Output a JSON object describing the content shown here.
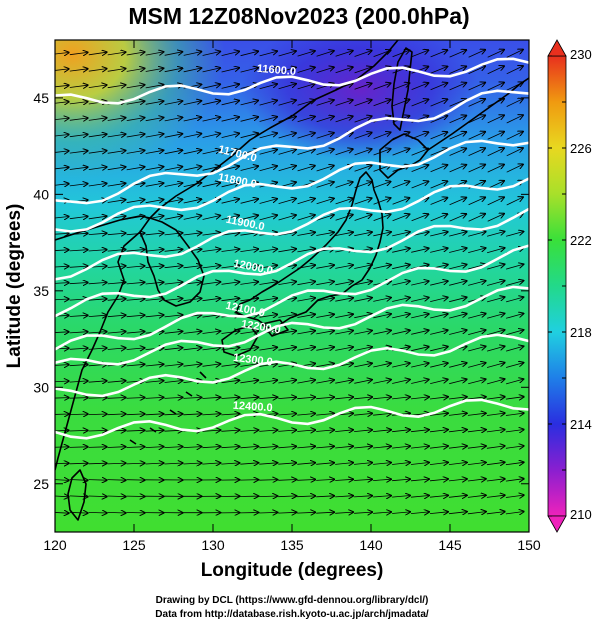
{
  "title": "MSM 12Z08Nov2023 (200.0hPa)",
  "x_axis": {
    "label": "Longitude (degrees)",
    "min": 120,
    "max": 150,
    "ticks": [
      "120",
      "125",
      "130",
      "135",
      "140",
      "145",
      "150"
    ]
  },
  "y_axis": {
    "label": "Latitude  (degrees)",
    "min": 22.5,
    "max": 48,
    "ticks": [
      "25",
      "30",
      "35",
      "40",
      "45"
    ]
  },
  "colorbar": {
    "min": 210,
    "max": 230,
    "ticks": [
      "210",
      "214",
      "218",
      "222",
      "226",
      "230"
    ],
    "colors": [
      "#ee22bb",
      "#8a1fd0",
      "#2a2ee0",
      "#1f7fe8",
      "#20d0e0",
      "#22d98a",
      "#39e03a",
      "#a8e02a",
      "#e8d820",
      "#f09a10",
      "#e8301e"
    ]
  },
  "contours": [
    {
      "label": "11600.0",
      "lat0": 44.8,
      "lat1": 46.8,
      "label_lon": 134.0
    },
    {
      "label": "11700.0",
      "lat0": 39.4,
      "lat1": 45.5,
      "label_lon": 131.5
    },
    {
      "label": "11800.0",
      "lat0": 38.2,
      "lat1": 43.0,
      "label_lon": 131.5
    },
    {
      "label": "11900.0",
      "lat0": 35.9,
      "lat1": 40.9,
      "label_lon": 132.0
    },
    {
      "label": "12000.0",
      "lat0": 34.0,
      "lat1": 39.0,
      "label_lon": 132.5
    },
    {
      "label": "12100.0",
      "lat0": 32.0,
      "lat1": 37.0,
      "label_lon": 132.0
    },
    {
      "label": "12200.0",
      "lat0": 31.0,
      "lat1": 35.0,
      "label_lon": 133.0
    },
    {
      "label": "12300.0",
      "lat0": 29.6,
      "lat1": 32.6,
      "label_lon": 132.5
    },
    {
      "label": "12400.0",
      "lat0": 27.6,
      "lat1": 29.2,
      "label_lon": 132.5
    }
  ],
  "credits": {
    "line1": "Drawing by DCL (https://www.gfd-dennou.org/library/dcl/)",
    "line2": "Data from http://database.rish.kyoto-u.ac.jp/arch/jmadata/"
  }
}
